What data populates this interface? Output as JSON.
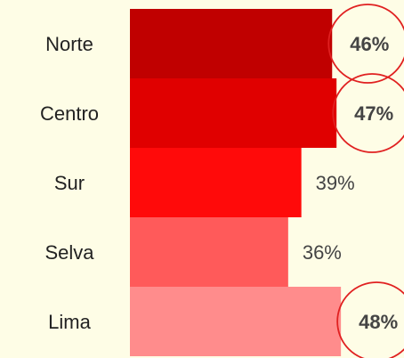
{
  "chart_data": {
    "type": "hbar",
    "categories": [
      "Norte",
      "Centro",
      "Sur",
      "Selva",
      "Lima"
    ],
    "values": [
      46,
      47,
      39,
      36,
      48
    ],
    "value_labels": [
      "46%",
      "47%",
      "39%",
      "36%",
      "48%"
    ],
    "colors": [
      "#c00000",
      "#e00000",
      "#ff0a0a",
      "#ff5a5a",
      "#ff8c8c"
    ],
    "highlight": [
      true,
      true,
      false,
      false,
      true
    ],
    "highlight_color": "#e02020",
    "xlim": [
      0,
      50
    ]
  }
}
